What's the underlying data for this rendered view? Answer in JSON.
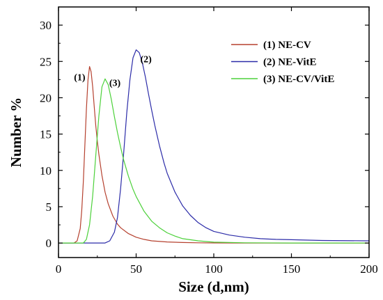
{
  "chart_data": {
    "type": "line",
    "title": "",
    "xlabel": "Size (d,nm)",
    "ylabel": "Number %",
    "xlim": [
      0,
      200
    ],
    "ylim": [
      -2,
      32.5
    ],
    "xticks": [
      0,
      50,
      100,
      150,
      200
    ],
    "yticks": [
      0,
      5,
      10,
      15,
      20,
      25,
      30
    ],
    "grid": false,
    "legend_position": "top-right",
    "series": [
      {
        "name": "(1) NE-CV",
        "peak_label": "(1)",
        "color": "#b5402e",
        "x": [
          0,
          10,
          12,
          14,
          15,
          16,
          17,
          18,
          19,
          20,
          21,
          22,
          23,
          24,
          25,
          26,
          28,
          30,
          32,
          35,
          38,
          40,
          45,
          50,
          55,
          60,
          70,
          80,
          90,
          100,
          120,
          150,
          200
        ],
        "y": [
          0,
          0,
          0.3,
          2.0,
          4.5,
          8.5,
          13.5,
          18.5,
          22.5,
          24.3,
          23.6,
          21.5,
          18.8,
          16.2,
          14.0,
          12.2,
          9.3,
          7.0,
          5.4,
          3.7,
          2.6,
          2.1,
          1.3,
          0.8,
          0.5,
          0.3,
          0.15,
          0.07,
          0.03,
          0.01,
          0,
          0,
          0
        ]
      },
      {
        "name": "(2) NE-VitE",
        "peak_label": "(2)",
        "color": "#2b2ba8",
        "x": [
          0,
          30,
          33,
          36,
          38,
          40,
          42,
          44,
          46,
          48,
          50,
          52,
          54,
          56,
          58,
          60,
          62,
          65,
          68,
          70,
          75,
          80,
          85,
          90,
          95,
          100,
          110,
          120,
          130,
          140,
          150,
          170,
          200
        ],
        "y": [
          0,
          0,
          0.3,
          1.5,
          3.5,
          7.5,
          12.5,
          18.0,
          22.5,
          25.5,
          26.6,
          26.2,
          24.8,
          22.8,
          20.5,
          18.3,
          16.2,
          13.4,
          11.0,
          9.6,
          7.0,
          5.1,
          3.8,
          2.8,
          2.1,
          1.6,
          1.1,
          0.8,
          0.6,
          0.5,
          0.45,
          0.35,
          0.3
        ]
      },
      {
        "name": "(3) NE-CV/VitE",
        "peak_label": "(3)",
        "color": "#4cd13a",
        "x": [
          0,
          16,
          18,
          20,
          22,
          24,
          26,
          28,
          30,
          32,
          34,
          36,
          38,
          40,
          42,
          45,
          48,
          50,
          55,
          60,
          65,
          70,
          75,
          80,
          90,
          100,
          120,
          150,
          200
        ],
        "y": [
          0,
          0,
          0.5,
          2.5,
          6.5,
          12.0,
          17.5,
          21.5,
          22.6,
          21.8,
          19.8,
          17.4,
          15.2,
          13.2,
          11.4,
          9.2,
          7.4,
          6.4,
          4.4,
          3.0,
          2.1,
          1.4,
          0.95,
          0.6,
          0.3,
          0.12,
          0.03,
          0,
          0
        ]
      }
    ]
  }
}
